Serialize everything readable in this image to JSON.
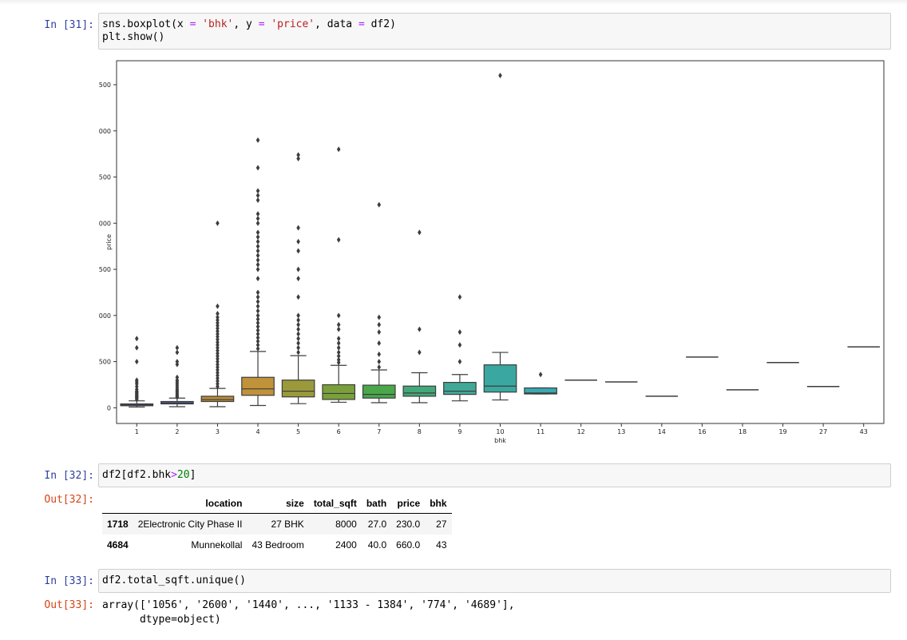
{
  "cells": [
    {
      "prompt": "In [31]:",
      "code_line1_a": "sns.boxplot(x ",
      "code_eq1": "=",
      "code_str1": "'bhk'",
      "code_mid1": ", y ",
      "code_eq2": "=",
      "code_str2": "'price'",
      "code_mid2": ", data ",
      "code_eq3": "=",
      "code_end1": " df2)",
      "code_line2": "plt.show()"
    },
    {
      "prompt": "In [32]:",
      "out_prompt": "Out[32]:",
      "code_a": "df2[df2.bhk",
      "code_op": ">",
      "code_num": "20",
      "code_b": "]"
    },
    {
      "prompt": "In [33]:",
      "out_prompt": "Out[33]:",
      "code": "df2.total_sqft.unique()",
      "output": "array(['1056', '2600', '1440', ..., '1133 - 1384', '774', '4689'],\n      dtype=object)"
    }
  ],
  "dataframe": {
    "columns": [
      "location",
      "size",
      "total_sqft",
      "bath",
      "price",
      "bhk"
    ],
    "rows": [
      {
        "index": "1718",
        "location": "2Electronic City Phase II",
        "size": "27 BHK",
        "total_sqft": "8000",
        "bath": "27.0",
        "price": "230.0",
        "bhk": "27"
      },
      {
        "index": "4684",
        "location": "Munnekollal",
        "size": "43 Bedroom",
        "total_sqft": "2400",
        "bath": "40.0",
        "price": "660.0",
        "bhk": "43"
      }
    ]
  },
  "chart_data": {
    "type": "box",
    "xlabel": "bhk",
    "ylabel": "price",
    "ylim": [
      -170,
      3760
    ],
    "yticks": [
      0,
      500,
      1000,
      1500,
      2000,
      2500,
      3000,
      3500
    ],
    "categories": [
      "1",
      "2",
      "3",
      "4",
      "5",
      "6",
      "7",
      "8",
      "9",
      "10",
      "11",
      "12",
      "13",
      "14",
      "16",
      "18",
      "19",
      "27",
      "43"
    ],
    "boxes": [
      {
        "cat": "1",
        "color": "#3a4cc0",
        "q1": 22,
        "median": 32,
        "q3": 42,
        "wlow": 8,
        "whigh": 75,
        "outliers": [
          90,
          100,
          110,
          120,
          130,
          140,
          150,
          160,
          170,
          180,
          200,
          230,
          260,
          280,
          300,
          500,
          650,
          750
        ]
      },
      {
        "cat": "2",
        "color": "#4d66cc",
        "q1": 42,
        "median": 52,
        "q3": 68,
        "wlow": 12,
        "whigh": 105,
        "outliers": [
          115,
          125,
          140,
          155,
          170,
          185,
          200,
          220,
          240,
          260,
          280,
          300,
          330,
          470,
          500,
          600,
          650
        ]
      },
      {
        "cat": "3",
        "color": "#b88a3a",
        "q1": 68,
        "median": 88,
        "q3": 125,
        "wlow": 12,
        "whigh": 210,
        "outliers": [
          230,
          260,
          290,
          320,
          350,
          380,
          410,
          440,
          470,
          500,
          530,
          560,
          590,
          620,
          650,
          680,
          710,
          740,
          770,
          800,
          830,
          860,
          890,
          920,
          950,
          980,
          1020,
          1100,
          2000
        ]
      },
      {
        "cat": "4",
        "color": "#c0923a",
        "q1": 135,
        "median": 205,
        "q3": 330,
        "wlow": 25,
        "whigh": 610,
        "outliers": [
          640,
          680,
          720,
          760,
          800,
          840,
          880,
          920,
          960,
          1000,
          1050,
          1100,
          1150,
          1200,
          1250,
          1400,
          1500,
          1550,
          1600,
          1650,
          1700,
          1750,
          1800,
          1850,
          1900,
          2000,
          2050,
          2100,
          2250,
          2300,
          2350,
          2600,
          2900
        ]
      },
      {
        "cat": "5",
        "color": "#9a9a3a",
        "q1": 118,
        "median": 180,
        "q3": 300,
        "wlow": 45,
        "whigh": 565,
        "outliers": [
          600,
          650,
          700,
          750,
          800,
          850,
          900,
          950,
          1000,
          1200,
          1400,
          1500,
          1700,
          1800,
          1950,
          2700,
          2740
        ]
      },
      {
        "cat": "6",
        "color": "#7aa03a",
        "q1": 90,
        "median": 155,
        "q3": 250,
        "wlow": 60,
        "whigh": 460,
        "outliers": [
          490,
          520,
          560,
          600,
          650,
          700,
          750,
          850,
          900,
          1000,
          1820,
          2800
        ]
      },
      {
        "cat": "7",
        "color": "#4aa84a",
        "q1": 105,
        "median": 145,
        "q3": 245,
        "wlow": 55,
        "whigh": 410,
        "outliers": [
          440,
          500,
          580,
          700,
          820,
          900,
          980,
          2200
        ]
      },
      {
        "cat": "8",
        "color": "#45a87a",
        "q1": 125,
        "median": 160,
        "q3": 235,
        "wlow": 55,
        "whigh": 380,
        "outliers": [
          600,
          850,
          1900
        ]
      },
      {
        "cat": "9",
        "color": "#40a896",
        "q1": 145,
        "median": 180,
        "q3": 275,
        "wlow": 75,
        "whigh": 360,
        "outliers": [
          500,
          680,
          820,
          1200
        ]
      },
      {
        "cat": "10",
        "color": "#3aa8a0",
        "q1": 170,
        "median": 235,
        "q3": 465,
        "wlow": 85,
        "whigh": 600,
        "outliers": [
          3600
        ]
      },
      {
        "cat": "11",
        "color": "#3aa8b0",
        "q1": 150,
        "median": 160,
        "q3": 215,
        "wlow": 150,
        "whigh": 215,
        "outliers": [
          360
        ]
      },
      {
        "cat": "12",
        "color": "#3a9ab8",
        "median": 300
      },
      {
        "cat": "13",
        "color": "#3a8fbc",
        "median": 280
      },
      {
        "cat": "14",
        "color": "#3a84c0",
        "median": 125
      },
      {
        "cat": "16",
        "color": "#3a78c4",
        "median": 550
      },
      {
        "cat": "18",
        "color": "#4a6cc8",
        "median": 195
      },
      {
        "cat": "19",
        "color": "#6a60c8",
        "median": 490
      },
      {
        "cat": "27",
        "color": "#8a56c4",
        "median": 230
      },
      {
        "cat": "43",
        "color": "#a44cbc",
        "median": 660
      }
    ]
  }
}
